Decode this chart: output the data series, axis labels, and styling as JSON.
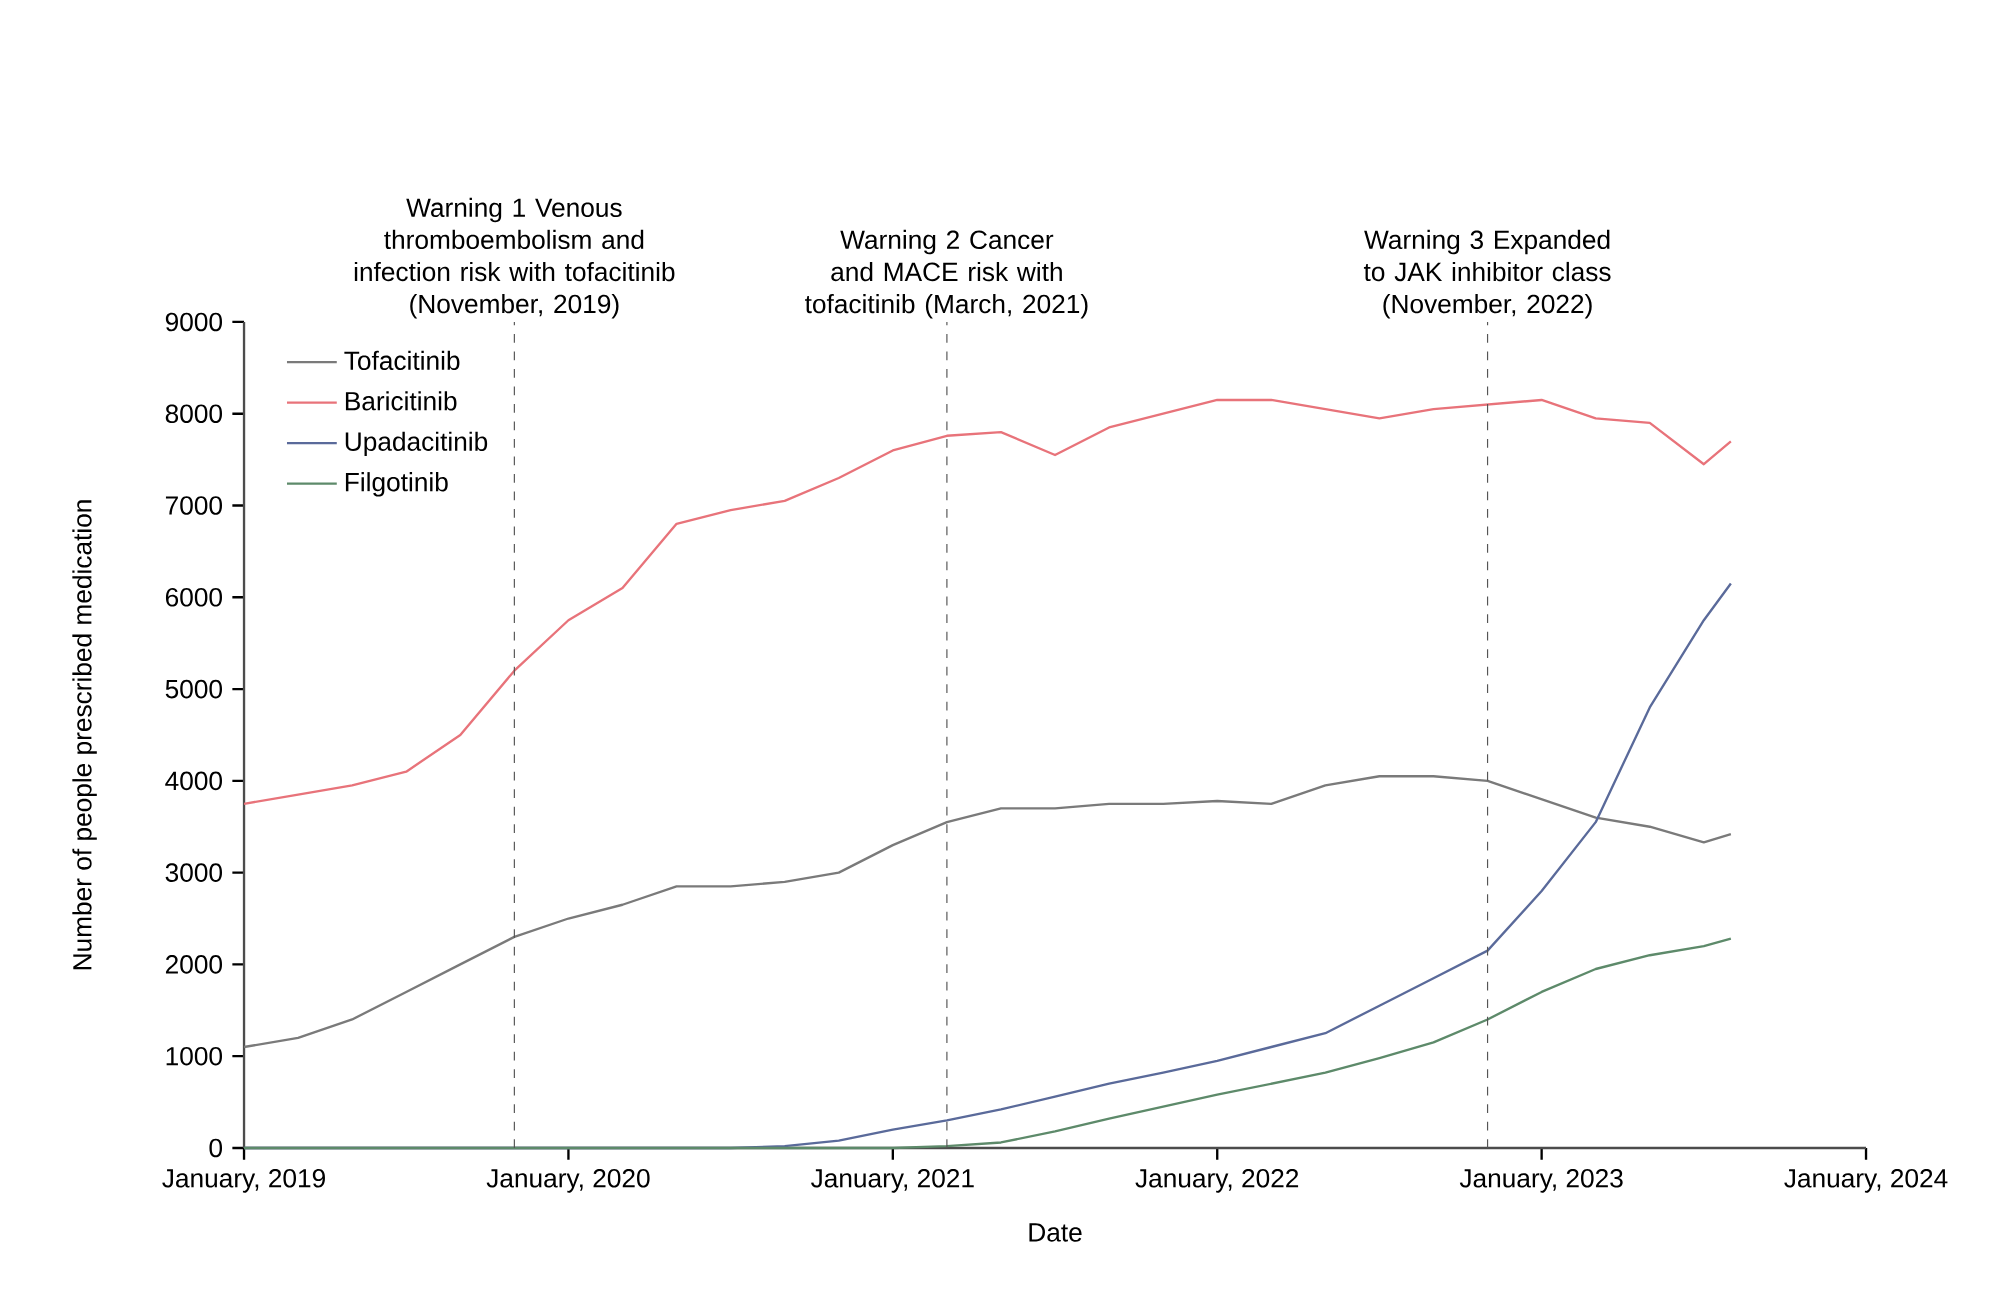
{
  "chart_data": {
    "type": "line",
    "xlabel": "Date",
    "ylabel": "Number of people prescribed medication",
    "x": [
      "2019-01",
      "2019-03",
      "2019-05",
      "2019-07",
      "2019-09",
      "2019-11",
      "2020-01",
      "2020-03",
      "2020-05",
      "2020-07",
      "2020-09",
      "2020-11",
      "2021-01",
      "2021-03",
      "2021-05",
      "2021-07",
      "2021-09",
      "2021-11",
      "2022-01",
      "2022-03",
      "2022-05",
      "2022-07",
      "2022-09",
      "2022-11",
      "2023-01",
      "2023-03",
      "2023-05",
      "2023-07",
      "2023-08"
    ],
    "series": [
      {
        "name": "Tofacitinib",
        "color": "#7a7a7a",
        "values": [
          1100,
          1200,
          1400,
          1700,
          2000,
          2300,
          2500,
          2650,
          2850,
          2850,
          2900,
          3000,
          3300,
          3550,
          3700,
          3700,
          3750,
          3750,
          3780,
          3750,
          3950,
          4050,
          4050,
          4000,
          3800,
          3600,
          3500,
          3330,
          3420
        ]
      },
      {
        "name": "Baricitinib",
        "color": "#e8737a",
        "values": [
          3750,
          3850,
          3950,
          4100,
          4500,
          5200,
          5750,
          6100,
          6800,
          6950,
          7050,
          7300,
          7600,
          7760,
          7800,
          7550,
          7850,
          8000,
          8150,
          8150,
          8050,
          7950,
          8050,
          8100,
          8150,
          7950,
          7900,
          7450,
          7700
        ]
      },
      {
        "name": "Upadacitinib",
        "color": "#5a6a9a",
        "values": [
          0,
          0,
          0,
          0,
          0,
          0,
          0,
          0,
          0,
          0,
          20,
          80,
          200,
          300,
          420,
          560,
          700,
          820,
          950,
          1100,
          1250,
          1550,
          1850,
          2150,
          2800,
          3550,
          4800,
          5750,
          6150
        ]
      },
      {
        "name": "Filgotinib",
        "color": "#5d8a6a",
        "values": [
          0,
          0,
          0,
          0,
          0,
          0,
          0,
          0,
          0,
          0,
          0,
          0,
          0,
          20,
          60,
          180,
          320,
          450,
          580,
          700,
          820,
          980,
          1150,
          1400,
          1700,
          1950,
          2100,
          2200,
          2280
        ]
      }
    ],
    "xlim": [
      "2019-01",
      "2024-01"
    ],
    "xticks": [
      {
        "value": "2019-01",
        "label": "January, 2019"
      },
      {
        "value": "2020-01",
        "label": "January, 2020"
      },
      {
        "value": "2021-01",
        "label": "January, 2021"
      },
      {
        "value": "2022-01",
        "label": "January, 2022"
      },
      {
        "value": "2023-01",
        "label": "January, 2023"
      },
      {
        "value": "2024-01",
        "label": "January, 2024"
      }
    ],
    "ylim": [
      0,
      9000
    ],
    "yticks": [
      0,
      1000,
      2000,
      3000,
      4000,
      5000,
      6000,
      7000,
      8000,
      9000
    ],
    "ref_lines": [
      {
        "axis": "x",
        "value": "2019-11",
        "label": "Warning 1 Venous thromboembolism and infection risk with tofacitinib (November, 2019)",
        "color": "#555555",
        "line_style": "dashed"
      },
      {
        "axis": "x",
        "value": "2021-03",
        "label": "Warning 2 Cancer and MACE risk with tofacitinib (March, 2021)",
        "color": "#555555",
        "line_style": "dashed"
      },
      {
        "axis": "x",
        "value": "2022-11",
        "label": "Warning 3 Expanded to JAK inhibitor class (November, 2022)",
        "color": "#555555",
        "line_style": "dashed"
      }
    ],
    "grid": false,
    "legend": "top left",
    "marker": "none",
    "line_style": "solid"
  }
}
